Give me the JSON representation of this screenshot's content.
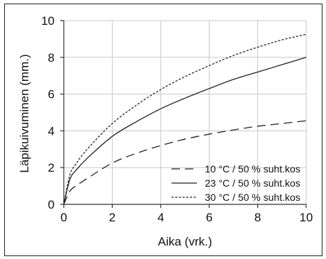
{
  "chart_data": {
    "type": "line",
    "title": "",
    "xlabel": "Aika (vrk.)",
    "ylabel": "Läpikuivuminen (mm.)",
    "xlim": [
      0,
      10
    ],
    "ylim": [
      0,
      10
    ],
    "xticks": [
      0,
      2,
      4,
      6,
      8,
      10
    ],
    "yticks": [
      0,
      2,
      4,
      6,
      8,
      10
    ],
    "grid": true,
    "legend_position": "bottom-right",
    "x": [
      0,
      0.25,
      0.5,
      1,
      2,
      3,
      4,
      5,
      6,
      7,
      8,
      9,
      10
    ],
    "series": [
      {
        "name": "10 °C / 50 % suht.kos",
        "line_style": "dashed",
        "color": "#222222",
        "values": [
          0,
          0.72,
          1.0,
          1.44,
          2.25,
          2.78,
          3.2,
          3.55,
          3.82,
          4.05,
          4.25,
          4.4,
          4.55
        ]
      },
      {
        "name": "23 °C / 50 % suht.kos",
        "line_style": "solid",
        "color": "#222222",
        "values": [
          0,
          1.35,
          1.85,
          2.55,
          3.7,
          4.5,
          5.2,
          5.78,
          6.3,
          6.8,
          7.2,
          7.6,
          8.0
        ]
      },
      {
        "name": "30 °C / 50 % suht.kos",
        "line_style": "dotted",
        "color": "#222222",
        "values": [
          0,
          1.6,
          2.2,
          3.05,
          4.4,
          5.4,
          6.25,
          6.95,
          7.55,
          8.1,
          8.55,
          8.95,
          9.25
        ]
      }
    ]
  }
}
